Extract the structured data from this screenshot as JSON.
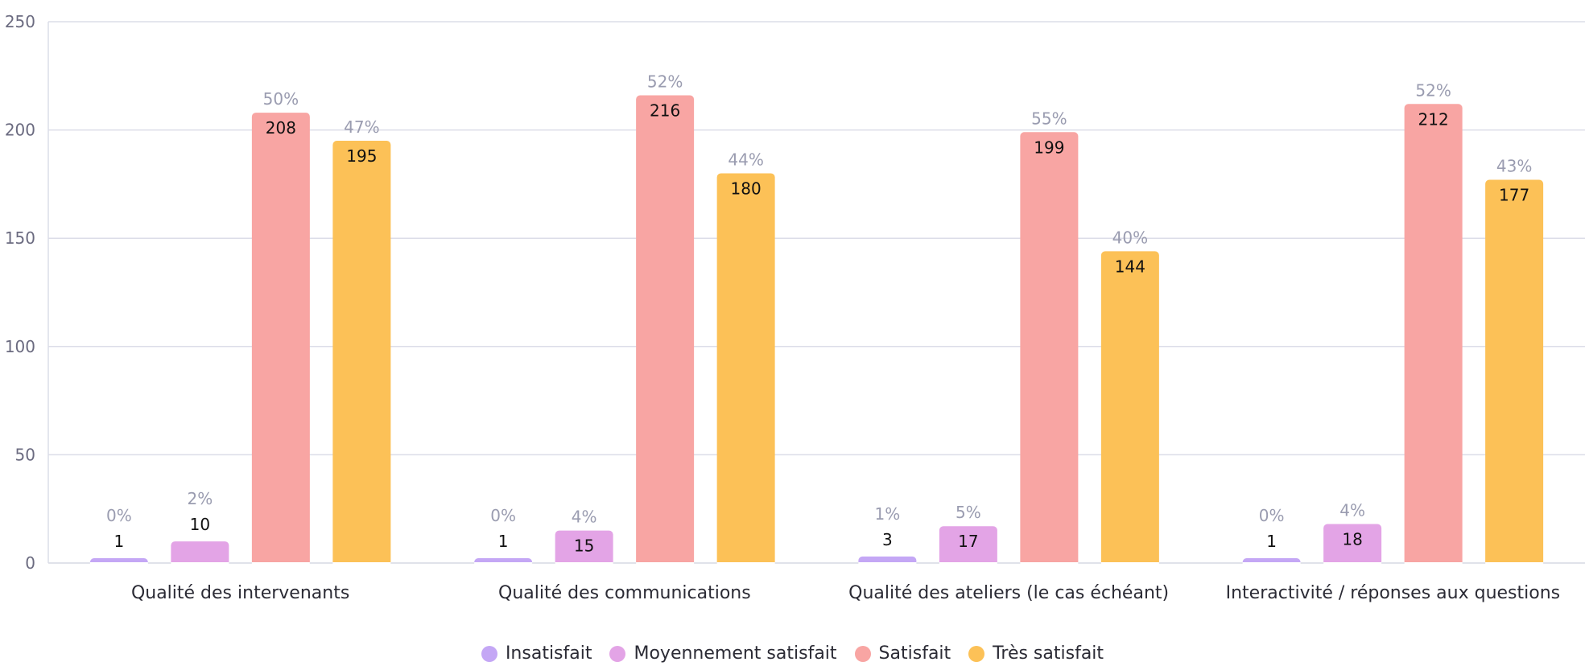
{
  "chart_data": {
    "type": "bar",
    "categories": [
      "Qualité des intervenants",
      "Qualité des communications",
      "Qualité des ateliers (le cas échéant)",
      "Interactivité / réponses aux questions"
    ],
    "series": [
      {
        "name": "Insatisfait",
        "color": "#c4a7f5",
        "values": [
          1,
          1,
          3,
          1
        ],
        "percents": [
          "0%",
          "0%",
          "1%",
          "0%"
        ]
      },
      {
        "name": "Moyennement satisfait",
        "color": "#e3a4e6",
        "values": [
          10,
          15,
          17,
          18
        ],
        "percents": [
          "2%",
          "4%",
          "5%",
          "4%"
        ]
      },
      {
        "name": "Satisfait",
        "color": "#f8a5a3",
        "values": [
          208,
          216,
          199,
          212
        ],
        "percents": [
          "50%",
          "52%",
          "55%",
          "52%"
        ]
      },
      {
        "name": "Très satisfait",
        "color": "#fcc157",
        "values": [
          195,
          180,
          144,
          177
        ],
        "percents": [
          "47%",
          "44%",
          "40%",
          "43%"
        ]
      }
    ],
    "yticks": [
      0,
      50,
      100,
      150,
      200,
      250
    ],
    "ylim": [
      0,
      250
    ],
    "grid": true,
    "legend_position": "bottom-center"
  }
}
